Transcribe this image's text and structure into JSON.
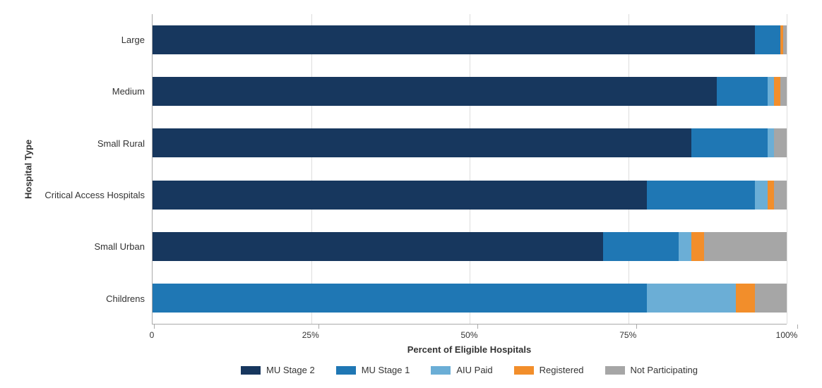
{
  "chart": {
    "type": "stacked-horizontal-bar",
    "background_color": "#ffffff",
    "grid_color": "#dddddd",
    "axis_color": "#aaaaaa",
    "text_color": "#333333",
    "y_axis_title": "Hospital Type",
    "x_axis_title": "Percent of Eligible Hospitals",
    "font_family": "Arial",
    "title_fontsize_pt": 13,
    "label_fontsize_pt": 13,
    "tick_fontsize_pt": 12,
    "bar_height_pct_of_slot": 56,
    "xlim": [
      0,
      100
    ],
    "x_ticks": [
      {
        "value": 0,
        "label": "0"
      },
      {
        "value": 25,
        "label": "25%"
      },
      {
        "value": 50,
        "label": "50%"
      },
      {
        "value": 75,
        "label": "75%"
      },
      {
        "value": 100,
        "label": "100%"
      }
    ],
    "categories": [
      "Large",
      "Medium",
      "Small Rural",
      "Critical Access Hospitals",
      "Small Urban",
      "Childrens"
    ],
    "series": [
      {
        "key": "mu_stage_2",
        "label": "MU Stage 2",
        "color": "#17375e"
      },
      {
        "key": "mu_stage_1",
        "label": "MU Stage 1",
        "color": "#1f77b4"
      },
      {
        "key": "aiu_paid",
        "label": "AIU Paid",
        "color": "#6baed6"
      },
      {
        "key": "registered",
        "label": "Registered",
        "color": "#f28e2b"
      },
      {
        "key": "not_participating",
        "label": "Not Participating",
        "color": "#a6a6a6"
      }
    ],
    "data": {
      "Large": {
        "mu_stage_2": 95,
        "mu_stage_1": 4,
        "aiu_paid": 0,
        "registered": 0.5,
        "not_participating": 0.5
      },
      "Medium": {
        "mu_stage_2": 89,
        "mu_stage_1": 8,
        "aiu_paid": 1,
        "registered": 1,
        "not_participating": 1
      },
      "Small Rural": {
        "mu_stage_2": 85,
        "mu_stage_1": 12,
        "aiu_paid": 1,
        "registered": 0,
        "not_participating": 2
      },
      "Critical Access Hospitals": {
        "mu_stage_2": 78,
        "mu_stage_1": 17,
        "aiu_paid": 2,
        "registered": 1,
        "not_participating": 2
      },
      "Small Urban": {
        "mu_stage_2": 71,
        "mu_stage_1": 12,
        "aiu_paid": 2,
        "registered": 2,
        "not_participating": 13
      },
      "Childrens": {
        "mu_stage_2": 0,
        "mu_stage_1": 78,
        "aiu_paid": 14,
        "registered": 3,
        "not_participating": 5
      }
    }
  }
}
